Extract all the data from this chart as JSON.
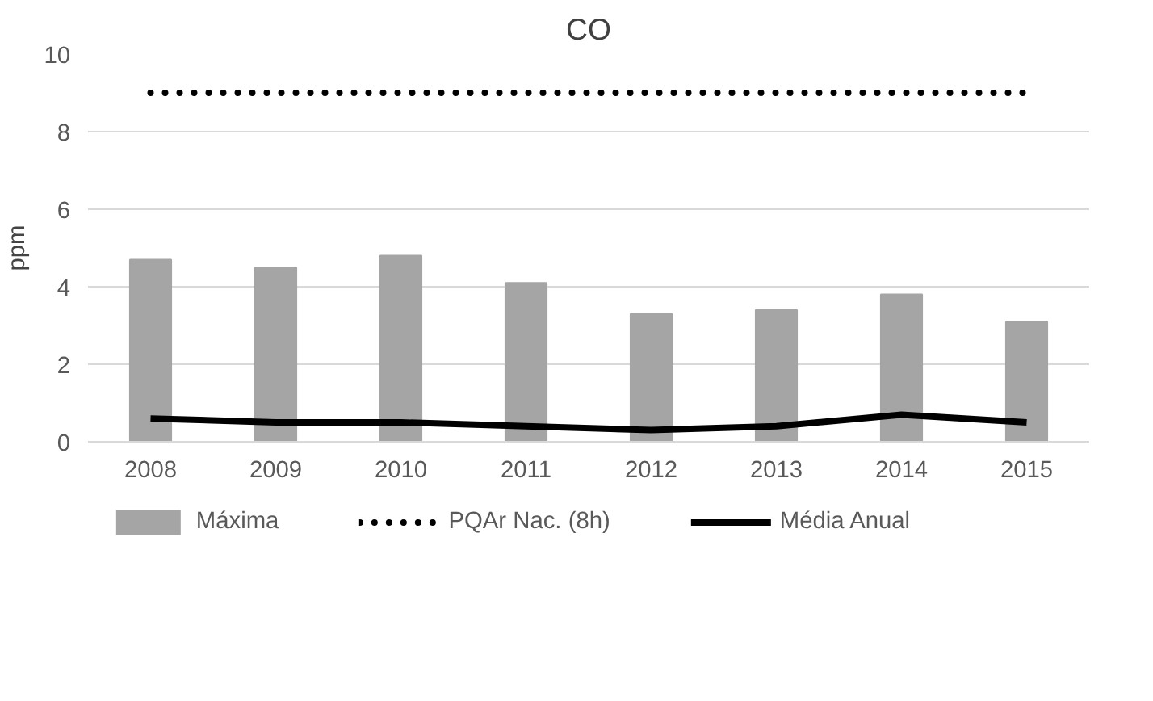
{
  "chart_data": {
    "type": "bar",
    "title": "CO",
    "ylabel": "ppm",
    "categories": [
      "2008",
      "2009",
      "2010",
      "2011",
      "2012",
      "2013",
      "2014",
      "2015"
    ],
    "series": [
      {
        "name": "Máxima",
        "color": "#a5a5a5",
        "values": [
          4.7,
          4.5,
          4.8,
          4.1,
          3.3,
          3.4,
          3.8,
          3.1
        ]
      },
      {
        "name": "PQAr Nac. (8h)",
        "type": "line",
        "line_style": "dotted",
        "color": "#000000",
        "values": [
          9,
          9,
          9,
          9,
          9,
          9,
          9,
          9
        ]
      },
      {
        "name": "Média Anual",
        "type": "line",
        "line_style": "solid",
        "color": "#000000",
        "values": [
          0.6,
          0.5,
          0.5,
          0.4,
          0.3,
          0.4,
          0.7,
          0.5
        ]
      }
    ],
    "ylim": [
      0,
      10
    ],
    "yticks": [
      0,
      2,
      4,
      6,
      8,
      10
    ],
    "grid": "y",
    "legend": "bottom"
  }
}
